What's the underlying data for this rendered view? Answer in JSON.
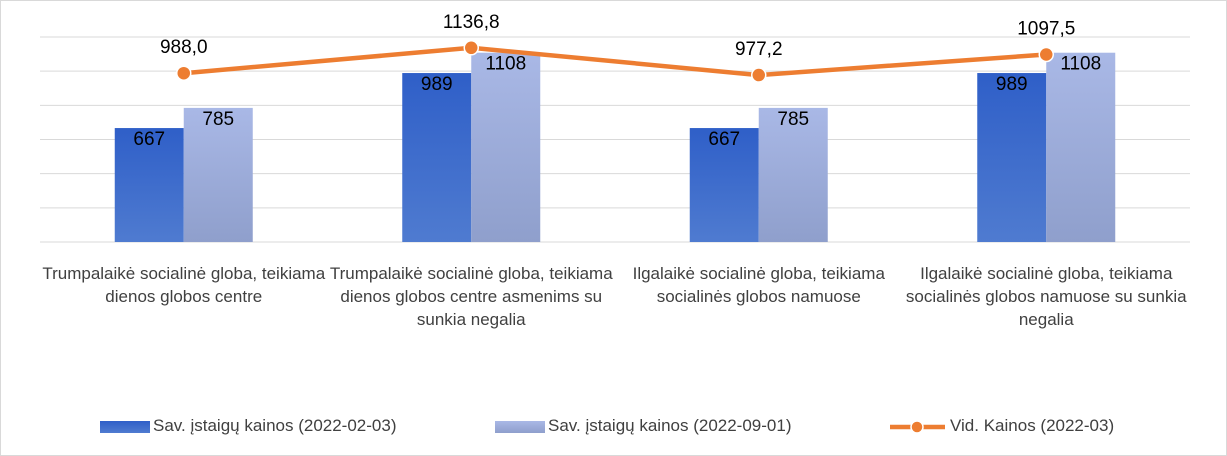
{
  "chart_data": {
    "type": "bar",
    "categories": [
      "Trumpalaikė socialinė globa, teikiama dienos globos centre",
      "Trumpalaikė socialinė globa, teikiama dienos globos centre asmenims su sunkia negalia",
      "Ilgalaikė socialinė globa, teikiama\nsocialinės globos namuose",
      "Ilgalaikė socialinė globa, teikiama\nsocialinės globos namuose su sunkia negalia"
    ],
    "series": [
      {
        "name": "Sav. įstaigų kainos (2022-02-03)",
        "type": "bar",
        "color": "#4472c4",
        "values": [
          667,
          989,
          667,
          989
        ]
      },
      {
        "name": "Sav. įstaigų kainos (2022-09-01)",
        "type": "bar",
        "color": "#b4c0e4",
        "values": [
          785,
          1108,
          785,
          1108
        ]
      },
      {
        "name": "Vid. Kainos (2022-03)",
        "type": "line",
        "color": "#ed7d31",
        "values": [
          988.0,
          1136.8,
          977.2,
          1097.5
        ],
        "value_labels": [
          "988,0",
          "1136,8",
          "977,2",
          "1097,5"
        ]
      }
    ],
    "ylim": [
      0,
      1200
    ],
    "yticks": [
      0,
      200,
      400,
      600,
      800,
      1000,
      1200
    ],
    "grid": true,
    "legend": "bottom"
  }
}
